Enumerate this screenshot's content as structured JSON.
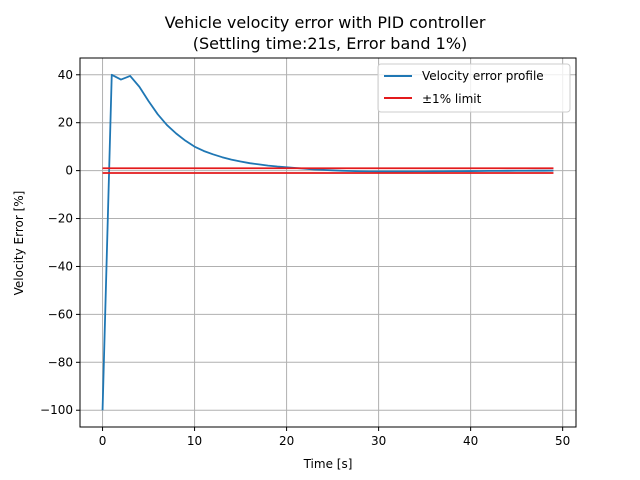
{
  "chart_data": {
    "type": "line",
    "title": "Vehicle velocity error with PID controller",
    "subtitle": "(Settling time:21s, Error band 1%)",
    "xlabel": "Time [s]",
    "ylabel": "Velocity Error [%]",
    "xlim": [
      -2.45,
      51.45
    ],
    "ylim": [
      -107,
      47
    ],
    "xticks": [
      0,
      10,
      20,
      30,
      40,
      50
    ],
    "yticks": [
      -100,
      -80,
      -60,
      -40,
      -20,
      0,
      20,
      40
    ],
    "xtick_labels": [
      "0",
      "10",
      "20",
      "30",
      "40",
      "50"
    ],
    "ytick_labels": [
      "−100",
      "−80",
      "−60",
      "−40",
      "−20",
      "0",
      "20",
      "40"
    ],
    "grid": true,
    "legend_position": "top-right",
    "series": [
      {
        "name": "Velocity error profile",
        "color": "#1f77b4",
        "x": [
          0,
          1,
          2,
          3,
          4,
          5,
          6,
          7,
          8,
          9,
          10,
          11,
          12,
          13,
          14,
          15,
          16,
          17,
          18,
          19,
          20,
          21,
          22,
          23,
          24,
          25,
          26,
          27,
          28,
          29,
          30,
          31,
          32,
          33,
          34,
          35,
          36,
          37,
          38,
          39,
          40,
          41,
          42,
          43,
          44,
          45,
          46,
          47,
          48,
          49
        ],
        "y": [
          -100,
          40,
          38,
          39.5,
          35,
          29,
          23.5,
          19,
          15.5,
          12.5,
          10,
          8.2,
          6.8,
          5.6,
          4.6,
          3.8,
          3.1,
          2.6,
          2.1,
          1.7,
          1.4,
          1.1,
          0.8,
          0.5,
          0.3,
          0.1,
          -0.05,
          -0.15,
          -0.25,
          -0.3,
          -0.35,
          -0.35,
          -0.35,
          -0.35,
          -0.3,
          -0.3,
          -0.28,
          -0.25,
          -0.22,
          -0.2,
          -0.18,
          -0.15,
          -0.12,
          -0.1,
          -0.08,
          -0.06,
          -0.05,
          -0.04,
          -0.03,
          -0.02
        ]
      },
      {
        "name": "±1% limit",
        "color": "#e31a1c",
        "x": [
          0,
          49
        ],
        "y_upper": [
          1,
          1
        ],
        "y_lower": [
          -1,
          -1
        ]
      }
    ]
  }
}
